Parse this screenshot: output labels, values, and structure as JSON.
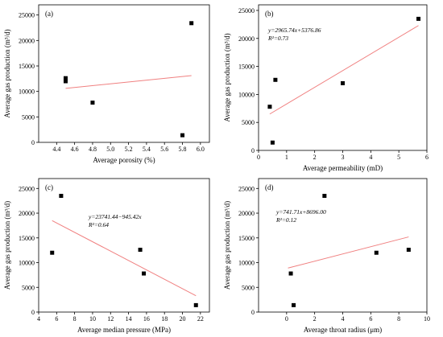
{
  "colors": {
    "fit_line": "#f08080",
    "points": "#000000",
    "axes": "#000000"
  },
  "chart_data": [
    {
      "type": "scatter",
      "panel_label": "(a)",
      "xlabel": "Average porosity (%)",
      "ylabel": "Average gas production (m³/d)",
      "xlim": [
        4.2,
        6.1
      ],
      "ylim": [
        0,
        27000
      ],
      "xticks": [
        4.4,
        4.6,
        4.8,
        5.0,
        5.2,
        5.4,
        5.6,
        5.8,
        6.0
      ],
      "yticks": [
        0,
        5000,
        10000,
        15000,
        20000,
        25000
      ],
      "points": [
        [
          4.5,
          12600
        ],
        [
          4.5,
          12000
        ],
        [
          4.8,
          7800
        ],
        [
          5.8,
          1400
        ],
        [
          5.9,
          23400
        ]
      ],
      "fit_line": [
        [
          4.5,
          10600
        ],
        [
          5.9,
          13100
        ]
      ],
      "equation": "",
      "r2": ""
    },
    {
      "type": "scatter",
      "panel_label": "(b)",
      "xlabel": "Average permeability (mD)",
      "ylabel": "Average gas production (m³/d)",
      "xlim": [
        0,
        6
      ],
      "ylim": [
        0,
        26000
      ],
      "xticks": [
        0,
        1,
        2,
        3,
        4,
        5,
        6
      ],
      "yticks": [
        0,
        5000,
        10000,
        15000,
        20000,
        25000
      ],
      "points": [
        [
          0.4,
          7800
        ],
        [
          0.5,
          1400
        ],
        [
          0.6,
          12600
        ],
        [
          3.0,
          12000
        ],
        [
          5.7,
          23500
        ]
      ],
      "fit_line": [
        [
          0.4,
          6500
        ],
        [
          5.7,
          22300
        ]
      ],
      "equation": "y=2965.74x+5376.86",
      "r2": "R²=0.73"
    },
    {
      "type": "scatter",
      "panel_label": "(c)",
      "xlabel": "Average median pressure (MPa)",
      "ylabel": "Average gas production (m³/d)",
      "xlim": [
        4,
        23
      ],
      "ylim": [
        0,
        27000
      ],
      "xticks": [
        4,
        6,
        8,
        10,
        12,
        14,
        16,
        18,
        20,
        22
      ],
      "yticks": [
        0,
        5000,
        10000,
        15000,
        20000,
        25000
      ],
      "points": [
        [
          5.5,
          12000
        ],
        [
          6.5,
          23500
        ],
        [
          15.3,
          12600
        ],
        [
          15.7,
          7800
        ],
        [
          21.5,
          1400
        ]
      ],
      "fit_line": [
        [
          5.5,
          18500
        ],
        [
          21.5,
          3300
        ]
      ],
      "equation": "y=23741.44−945.42x",
      "r2": "R²=0.64"
    },
    {
      "type": "scatter",
      "panel_label": "(d)",
      "xlabel": "Average throat radius (μm)",
      "ylabel": "Average gas production (m³/d)",
      "xlim": [
        -2,
        10
      ],
      "ylim": [
        0,
        27000
      ],
      "xticks": [
        0,
        2,
        4,
        6,
        8,
        10
      ],
      "yticks": [
        0,
        5000,
        10000,
        15000,
        20000,
        25000
      ],
      "points": [
        [
          0.3,
          7800
        ],
        [
          0.5,
          1400
        ],
        [
          2.7,
          23500
        ],
        [
          6.4,
          12000
        ],
        [
          8.7,
          12600
        ]
      ],
      "fit_line": [
        [
          0.1,
          8900
        ],
        [
          8.7,
          15200
        ]
      ],
      "equation": "y=741.71x+8696.00",
      "r2": "R²=0.12"
    }
  ]
}
